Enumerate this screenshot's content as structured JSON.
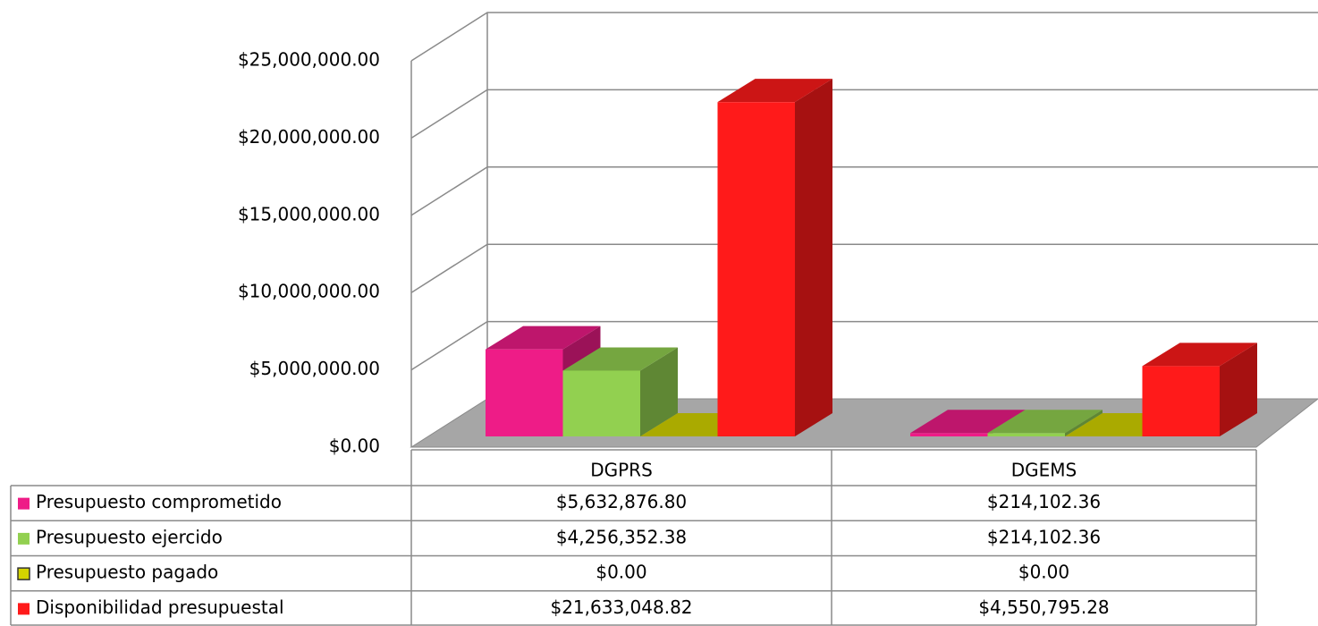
{
  "chart_data": {
    "type": "bar3d",
    "categories": [
      "DGPRS",
      "DGEMS"
    ],
    "series": [
      {
        "name": "Presupuesto comprometido",
        "color": "#ee1c87",
        "values": [
          5632876.8,
          214102.36
        ],
        "value_labels": [
          "$5,632,876.80",
          "$214,102.36"
        ]
      },
      {
        "name": "Presupuesto ejercido",
        "color": "#92d050",
        "values": [
          4256352.38,
          214102.36
        ],
        "value_labels": [
          "$4,256,352.38",
          "$214,102.36"
        ]
      },
      {
        "name": "Presupuesto pagado",
        "color": "#d4d400",
        "values": [
          0,
          0
        ],
        "value_labels": [
          "$0.00",
          "$0.00"
        ]
      },
      {
        "name": "Disponibilidad presupuestal",
        "color": "#ff1a1a",
        "values": [
          21633048.82,
          4550795.28
        ],
        "value_labels": [
          "$21,633,048.82",
          "$4,550,795.28"
        ]
      }
    ],
    "ylim": [
      0,
      25000000
    ],
    "yticks": [
      {
        "value": 0,
        "label": "$0.00"
      },
      {
        "value": 5000000,
        "label": "$5,000,000.00"
      },
      {
        "value": 10000000,
        "label": "$10,000,000.00"
      },
      {
        "value": 15000000,
        "label": "$15,000,000.00"
      },
      {
        "value": 20000000,
        "label": "$20,000,000.00"
      },
      {
        "value": 25000000,
        "label": "$25,000,000.00"
      }
    ],
    "grid": true
  }
}
